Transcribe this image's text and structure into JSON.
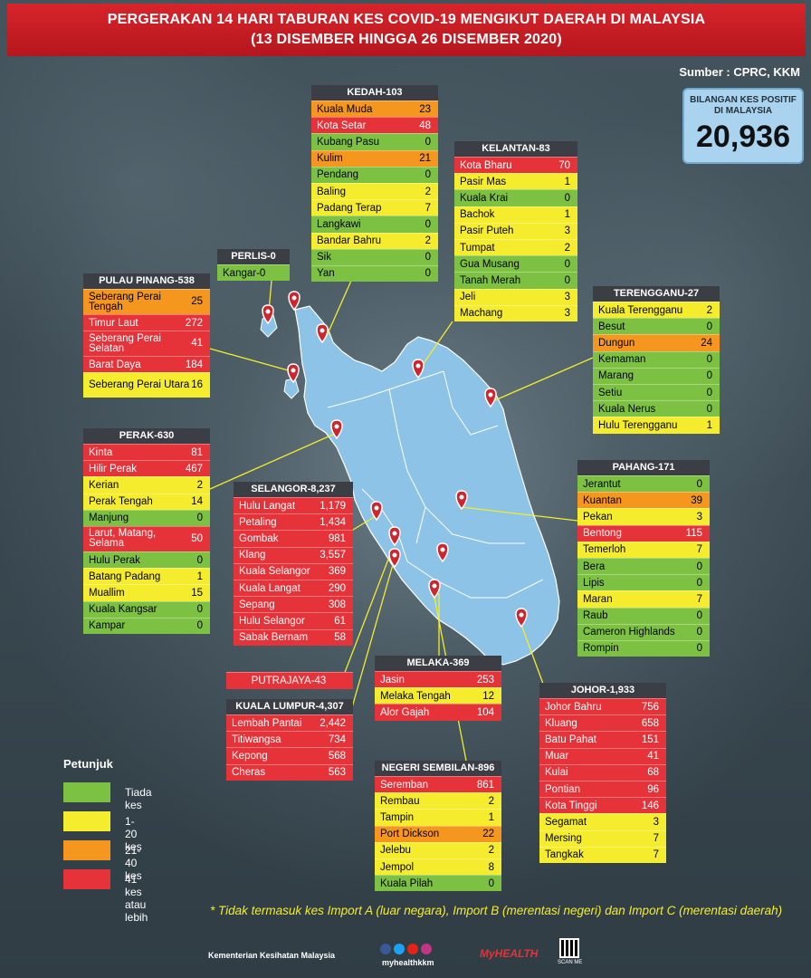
{
  "title_line1": "PERGERAKAN 14 HARI TABURAN KES COVID-19 MENGIKUT DAERAH DI MALAYSIA",
  "title_line2": "(13 DISEMBER HINGGA 26 DISEMBER 2020)",
  "source": "Sumber : CPRC, KKM",
  "total": {
    "label": "BILANGAN KES POSITIF DI MALAYSIA",
    "value": "20,936"
  },
  "colors": {
    "green": "#7dc142",
    "yellow": "#f4ec2c",
    "orange": "#f5961e",
    "red": "#e63239",
    "header": "#3b3e44",
    "map": "#8cc3e6"
  },
  "states": {
    "kedah": {
      "title": "KEDAH-103",
      "rows": [
        [
          "Kuala Muda",
          "23",
          "o"
        ],
        [
          "Kota Setar",
          "48",
          "r"
        ],
        [
          "Kubang Pasu",
          "0",
          "g"
        ],
        [
          "Kulim",
          "21",
          "o"
        ],
        [
          "Pendang",
          "0",
          "g"
        ],
        [
          "Baling",
          "2",
          "y"
        ],
        [
          "Padang Terap",
          "7",
          "y"
        ],
        [
          "Langkawi",
          "0",
          "g"
        ],
        [
          "Bandar Bahru",
          "2",
          "y"
        ],
        [
          "Sik",
          "0",
          "g"
        ],
        [
          "Yan",
          "0",
          "g"
        ]
      ]
    },
    "kelantan": {
      "title": "KELANTAN-83",
      "rows": [
        [
          "Kota Bharu",
          "70",
          "r"
        ],
        [
          "Pasir Mas",
          "1",
          "y"
        ],
        [
          "Kuala Krai",
          "0",
          "g"
        ],
        [
          "Bachok",
          "1",
          "y"
        ],
        [
          "Pasir Puteh",
          "3",
          "y"
        ],
        [
          "Tumpat",
          "2",
          "y"
        ],
        [
          "Gua Musang",
          "0",
          "g"
        ],
        [
          "Tanah Merah",
          "0",
          "g"
        ],
        [
          "Jeli",
          "3",
          "y"
        ],
        [
          "Machang",
          "3",
          "y"
        ]
      ]
    },
    "perlis": {
      "title": "PERLIS-0",
      "rows": [
        [
          "Kangar-0",
          "",
          "g"
        ]
      ]
    },
    "pinang": {
      "title": "PULAU PINANG-538",
      "rows": [
        [
          "Seberang Perai Tengah",
          "25",
          "o"
        ],
        [
          "Timur Laut",
          "272",
          "r"
        ],
        [
          "Seberang Perai Selatan",
          "41",
          "r"
        ],
        [
          "Barat Daya",
          "184",
          "r"
        ],
        [
          "Seberang Perai Utara",
          "16",
          "y"
        ]
      ]
    },
    "terengganu": {
      "title": "TERENGGANU-27",
      "rows": [
        [
          "Kuala Terengganu",
          "2",
          "y"
        ],
        [
          "Besut",
          "0",
          "g"
        ],
        [
          "Dungun",
          "24",
          "o"
        ],
        [
          "Kemaman",
          "0",
          "g"
        ],
        [
          "Marang",
          "0",
          "g"
        ],
        [
          "Setiu",
          "0",
          "g"
        ],
        [
          "Kuala Nerus",
          "0",
          "g"
        ],
        [
          "Hulu Terengganu",
          "1",
          "y"
        ]
      ]
    },
    "perak": {
      "title": "PERAK-630",
      "rows": [
        [
          "Kinta",
          "81",
          "r"
        ],
        [
          "Hilir Perak",
          "467",
          "r"
        ],
        [
          "Kerian",
          "2",
          "y"
        ],
        [
          "Perak Tengah",
          "14",
          "y"
        ],
        [
          "Manjung",
          "0",
          "g"
        ],
        [
          "Larut, Matang, Selama",
          "50",
          "r"
        ],
        [
          "Hulu Perak",
          "0",
          "g"
        ],
        [
          "Batang Padang",
          "1",
          "y"
        ],
        [
          "Muallim",
          "15",
          "y"
        ],
        [
          "Kuala Kangsar",
          "0",
          "g"
        ],
        [
          "Kampar",
          "0",
          "g"
        ]
      ]
    },
    "selangor": {
      "title": "SELANGOR-8,237",
      "rows": [
        [
          "Hulu Langat",
          "1,179",
          "r"
        ],
        [
          "Petaling",
          "1,434",
          "r"
        ],
        [
          "Gombak",
          "981",
          "r"
        ],
        [
          "Klang",
          "3,557",
          "r"
        ],
        [
          "Kuala Selangor",
          "369",
          "r"
        ],
        [
          "Kuala Langat",
          "290",
          "r"
        ],
        [
          "Sepang",
          "308",
          "r"
        ],
        [
          "Hulu Selangor",
          "61",
          "r"
        ],
        [
          "Sabak Bernam",
          "58",
          "r"
        ]
      ]
    },
    "pahang": {
      "title": "PAHANG-171",
      "rows": [
        [
          "Jerantut",
          "0",
          "g"
        ],
        [
          "Kuantan",
          "39",
          "o"
        ],
        [
          "Pekan",
          "3",
          "y"
        ],
        [
          "Bentong",
          "115",
          "r"
        ],
        [
          "Temerloh",
          "7",
          "y"
        ],
        [
          "Bera",
          "0",
          "g"
        ],
        [
          "Lipis",
          "0",
          "g"
        ],
        [
          "Maran",
          "7",
          "y"
        ],
        [
          "Raub",
          "0",
          "g"
        ],
        [
          "Cameron Highlands",
          "0",
          "g"
        ],
        [
          "Rompin",
          "0",
          "g"
        ]
      ]
    },
    "putrajaya": {
      "title": "PUTRAJAYA-43"
    },
    "kl": {
      "title": "KUALA LUMPUR-4,307",
      "rows": [
        [
          "Lembah Pantai",
          "2,442",
          "r"
        ],
        [
          "Titiwangsa",
          "734",
          "r"
        ],
        [
          "Kepong",
          "568",
          "r"
        ],
        [
          "Cheras",
          "563",
          "r"
        ]
      ]
    },
    "melaka": {
      "title": "MELAKA-369",
      "rows": [
        [
          "Jasin",
          "253",
          "r"
        ],
        [
          "Melaka Tengah",
          "12",
          "y"
        ],
        [
          "Alor Gajah",
          "104",
          "r"
        ]
      ]
    },
    "johor": {
      "title": "JOHOR-1,933",
      "rows": [
        [
          "Johor Bahru",
          "756",
          "r"
        ],
        [
          "Kluang",
          "658",
          "r"
        ],
        [
          "Batu Pahat",
          "151",
          "r"
        ],
        [
          "Muar",
          "41",
          "r"
        ],
        [
          "Kulai",
          "68",
          "r"
        ],
        [
          "Pontian",
          "96",
          "r"
        ],
        [
          "Kota Tinggi",
          "146",
          "r"
        ],
        [
          "Segamat",
          "3",
          "y"
        ],
        [
          "Mersing",
          "7",
          "y"
        ],
        [
          "Tangkak",
          "7",
          "y"
        ]
      ]
    },
    "ns": {
      "title": "NEGERI SEMBILAN-896",
      "rows": [
        [
          "Seremban",
          "861",
          "r"
        ],
        [
          "Rembau",
          "2",
          "y"
        ],
        [
          "Tampin",
          "1",
          "y"
        ],
        [
          "Port Dickson",
          "22",
          "o"
        ],
        [
          "Jelebu",
          "2",
          "y"
        ],
        [
          "Jempol",
          "8",
          "y"
        ],
        [
          "Kuala Pilah",
          "0",
          "g"
        ]
      ]
    }
  },
  "legend": {
    "title": "Petunjuk",
    "items": [
      {
        "label": "Tiada kes",
        "color": "#7dc142"
      },
      {
        "label": "1- 20 kes",
        "color": "#f4ec2c"
      },
      {
        "label": "21-40 kes",
        "color": "#f5961e"
      },
      {
        "label": "41 kes atau lebih",
        "color": "#e63239"
      }
    ]
  },
  "note": "* Tidak termasuk kes Import A (luar negara),  Import B (merentasi negeri) dan Import C (merentasi daerah)",
  "footer": {
    "ministry": "Kementerian Kesihatan Malaysia",
    "handle": "myhealthkkm",
    "brand": "MyHEALTH",
    "scan": "SCAN ME"
  }
}
